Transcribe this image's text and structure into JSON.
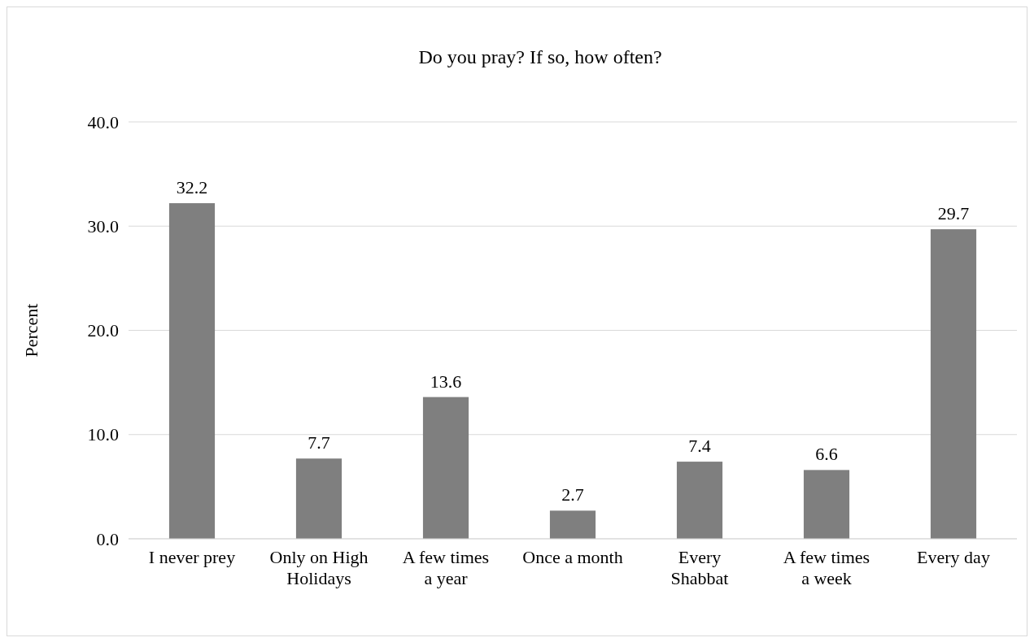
{
  "chart_data": {
    "type": "bar",
    "title": "Do you pray? If so, how often?",
    "ylabel": "Percent",
    "categories": [
      "I never prey",
      "Only on High Holidays",
      "A few times a year",
      "Once a month",
      "Every Shabbat",
      "A few times a week",
      "Every day"
    ],
    "values": [
      32.2,
      7.7,
      13.6,
      2.7,
      7.4,
      6.6,
      29.7
    ],
    "color": "#7f7f7f",
    "ylim": [
      0,
      40
    ],
    "yticks": [
      {
        "value": 0,
        "label": "0.0"
      },
      {
        "value": 10,
        "label": "10.0"
      },
      {
        "value": 20,
        "label": "20.0"
      },
      {
        "value": 30,
        "label": "30.0"
      },
      {
        "value": 40,
        "label": "40.0"
      }
    ],
    "grid": "y",
    "data_labels": true
  }
}
